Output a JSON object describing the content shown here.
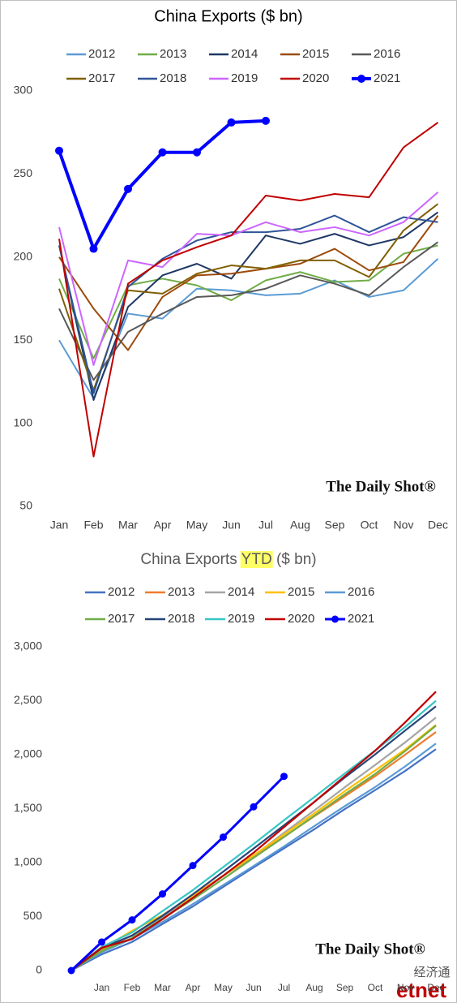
{
  "chart_data": [
    {
      "type": "line",
      "title": "China Exports ($ bn)",
      "categories": [
        "Jan",
        "Feb",
        "Mar",
        "Apr",
        "May",
        "Jun",
        "Jul",
        "Aug",
        "Sep",
        "Oct",
        "Nov",
        "Dec"
      ],
      "ylim": [
        50,
        300
      ],
      "yticks": [
        50,
        100,
        150,
        200,
        250,
        300
      ],
      "series": [
        {
          "name": "2012",
          "color": "#5b9bd5",
          "values": [
            150,
            115,
            166,
            163,
            181,
            180,
            177,
            178,
            186,
            176,
            180,
            199
          ]
        },
        {
          "name": "2013",
          "color": "#70ad47",
          "values": [
            187,
            139,
            183,
            187,
            183,
            174,
            186,
            191,
            185,
            186,
            202,
            207
          ]
        },
        {
          "name": "2014",
          "color": "#1f3864",
          "values": [
            207,
            114,
            170,
            189,
            196,
            187,
            213,
            208,
            214,
            207,
            212,
            227
          ]
        },
        {
          "name": "2015",
          "color": "#9c4a0b",
          "values": [
            200,
            169,
            144,
            176,
            189,
            190,
            193,
            196,
            205,
            192,
            197,
            225
          ]
        },
        {
          "name": "2016",
          "color": "#595959",
          "values": [
            169,
            126,
            155,
            166,
            176,
            177,
            181,
            189,
            184,
            177,
            194,
            209
          ]
        },
        {
          "name": "2017",
          "color": "#806000",
          "values": [
            181,
            120,
            180,
            178,
            190,
            195,
            193,
            198,
            198,
            188,
            216,
            232
          ]
        },
        {
          "name": "2018",
          "color": "#2f5597",
          "values": [
            207,
            118,
            182,
            199,
            210,
            215,
            215,
            217,
            225,
            215,
            224,
            221
          ]
        },
        {
          "name": "2019",
          "color": "#cc66ff",
          "values": [
            218,
            135,
            198,
            194,
            214,
            213,
            221,
            215,
            218,
            213,
            221,
            239
          ]
        },
        {
          "name": "2020",
          "color": "#c00000",
          "values": [
            211,
            80,
            184,
            198,
            206,
            213,
            237,
            234,
            238,
            236,
            266,
            281
          ]
        },
        {
          "name": "2021",
          "color": "#0000ff",
          "marker": true,
          "values": [
            264,
            205,
            241,
            263,
            263,
            281,
            282,
            null,
            null,
            null,
            null,
            null
          ]
        }
      ]
    },
    {
      "type": "line",
      "title": [
        "China Exports",
        "YTD",
        "($ bn)"
      ],
      "highlight": "#ffff66",
      "categories": [
        null,
        "Jan",
        "Feb",
        "Mar",
        "Apr",
        "May",
        "Jun",
        "Jul",
        "Aug",
        "Sep",
        "Oct",
        "Nov",
        "Dec"
      ],
      "ylim": [
        0,
        3000
      ],
      "yticks": [
        0,
        500,
        {
          "value": 1000,
          "label": "1,000"
        },
        {
          "value": 1500,
          "label": "1,500"
        },
        {
          "value": 2000,
          "label": "2,000"
        },
        {
          "value": 2500,
          "label": "2,500"
        },
        {
          "value": 3000,
          "label": "3,000"
        }
      ],
      "series": [
        {
          "name": "2012",
          "color": "#4472c4",
          "values": [
            0,
            150,
            265,
            431,
            594,
            775,
            955,
            1132,
            1310,
            1496,
            1672,
            1852,
            2051
          ]
        },
        {
          "name": "2013",
          "color": "#ed7d31",
          "values": [
            0,
            187,
            326,
            509,
            696,
            879,
            1053,
            1239,
            1430,
            1615,
            1801,
            2003,
            2210
          ]
        },
        {
          "name": "2014",
          "color": "#a5a5a5",
          "values": [
            0,
            207,
            321,
            491,
            680,
            876,
            1063,
            1276,
            1484,
            1698,
            1905,
            2117,
            2344
          ]
        },
        {
          "name": "2015",
          "color": "#ffc000",
          "values": [
            0,
            200,
            369,
            513,
            689,
            878,
            1068,
            1261,
            1457,
            1662,
            1854,
            2051,
            2276
          ]
        },
        {
          "name": "2016",
          "color": "#5b9bd5",
          "values": [
            0,
            169,
            295,
            450,
            616,
            792,
            969,
            1150,
            1339,
            1523,
            1700,
            1894,
            2103
          ]
        },
        {
          "name": "2017",
          "color": "#70ad47",
          "values": [
            0,
            181,
            301,
            481,
            659,
            849,
            1044,
            1237,
            1435,
            1633,
            1821,
            2037,
            2269
          ]
        },
        {
          "name": "2018",
          "color": "#264478",
          "values": [
            0,
            207,
            325,
            507,
            706,
            916,
            1131,
            1346,
            1563,
            1788,
            2003,
            2227,
            2448
          ]
        },
        {
          "name": "2019",
          "color": "#36c5c5",
          "values": [
            0,
            218,
            353,
            551,
            745,
            959,
            1172,
            1393,
            1608,
            1826,
            2039,
            2260,
            2499
          ]
        },
        {
          "name": "2020",
          "color": "#c00000",
          "values": [
            0,
            211,
            291,
            475,
            673,
            879,
            1092,
            1329,
            1563,
            1801,
            2037,
            2303,
            2584
          ]
        },
        {
          "name": "2021",
          "color": "#0000ff",
          "marker": true,
          "values": [
            0,
            264,
            469,
            710,
            973,
            1236,
            1517,
            1799,
            null,
            null,
            null,
            null,
            null
          ]
        }
      ]
    }
  ],
  "watermarks": {
    "brand_top": "The Daily Shot®",
    "brand_bottom": "The Daily Shot®",
    "cn": "经济通",
    "etnet": "etnet"
  }
}
